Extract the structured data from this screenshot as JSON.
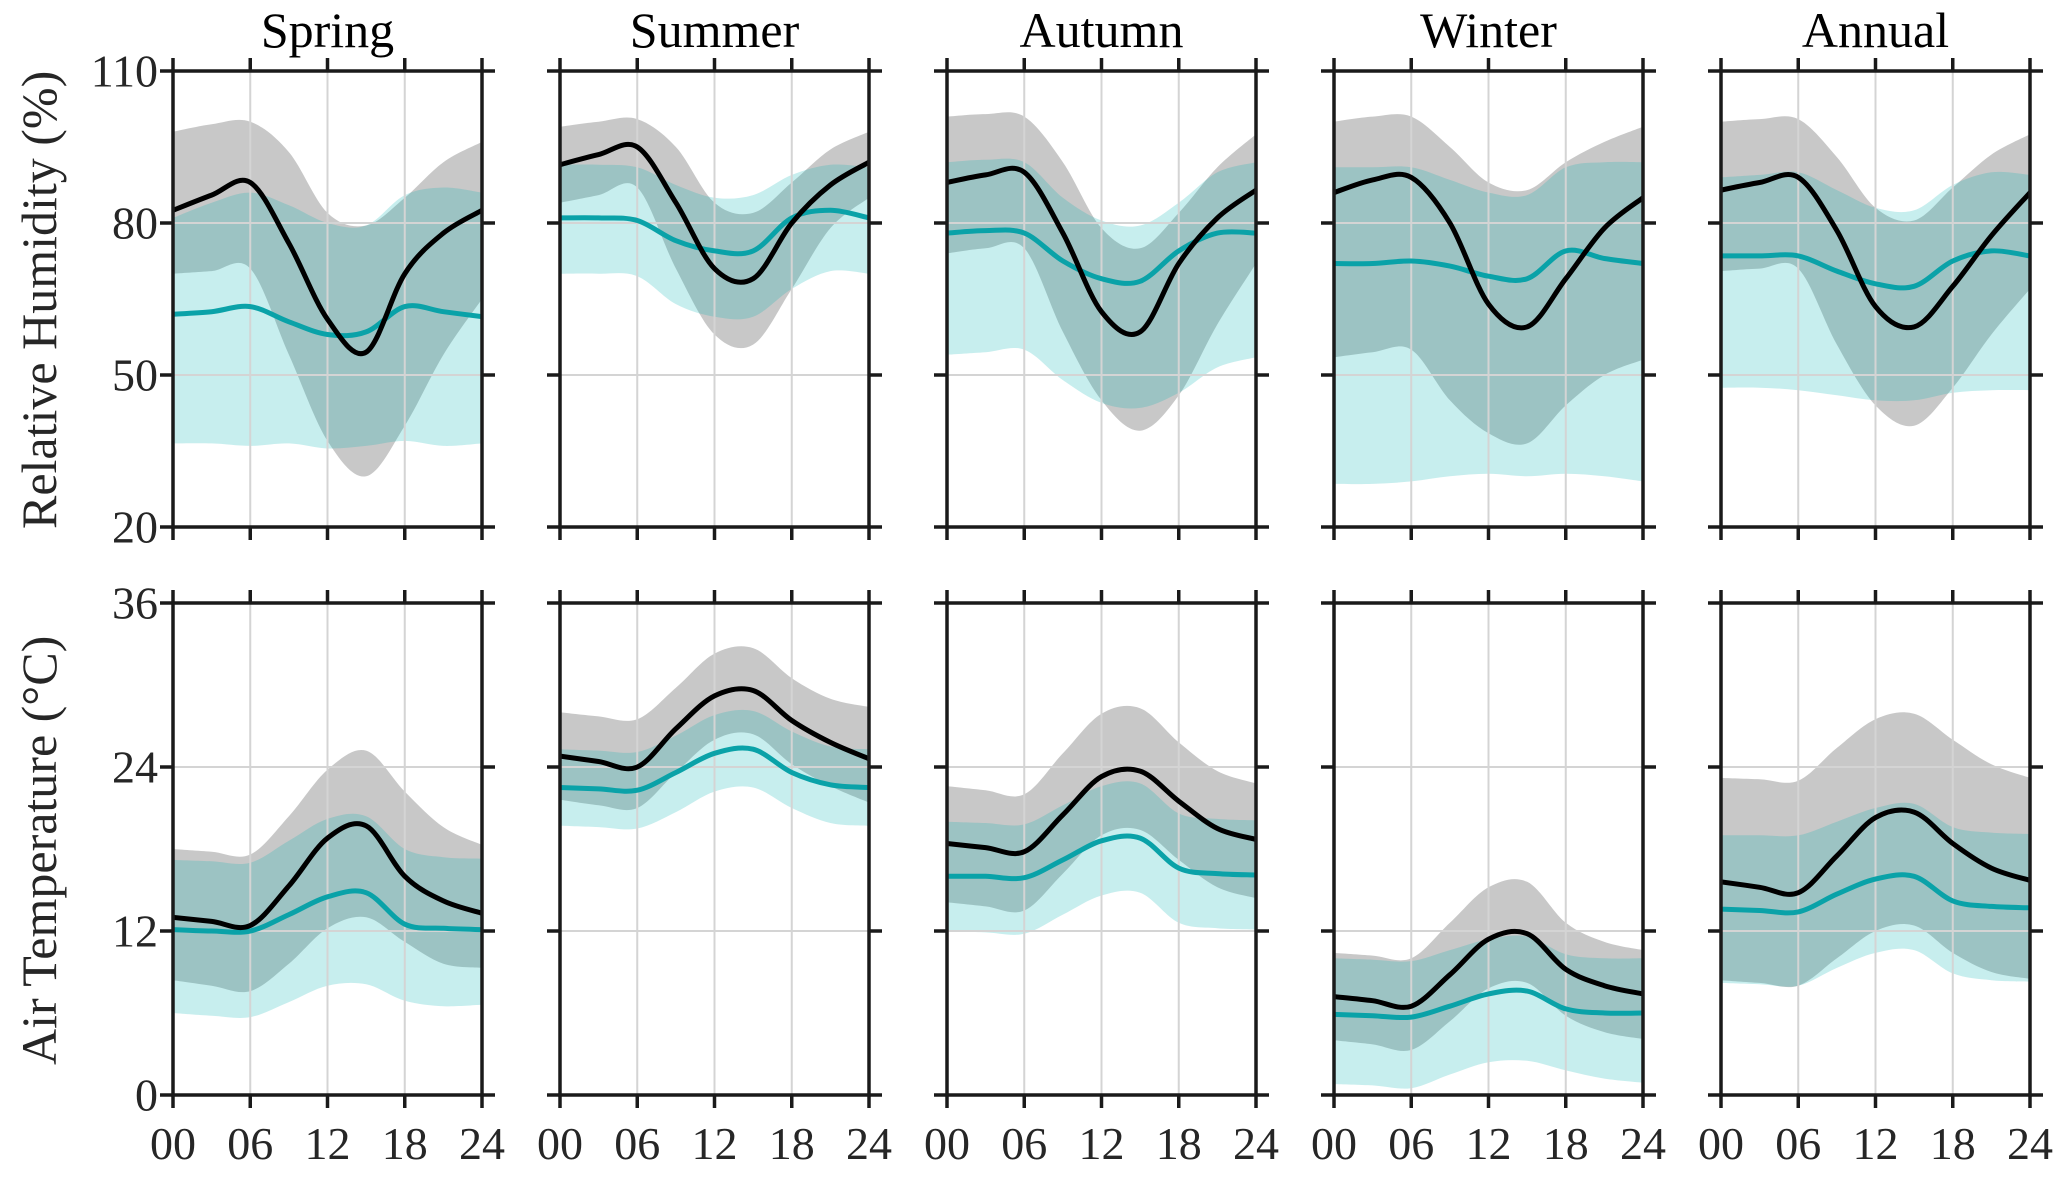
{
  "chart_data": {
    "type": "line",
    "figure_kind": "2x5 small-multiples, mean lines with shaded spread bands",
    "columns": [
      "Spring",
      "Summer",
      "Autumn",
      "Winter",
      "Annual"
    ],
    "x": {
      "hours": [
        0,
        3,
        6,
        9,
        12,
        15,
        18,
        21,
        24
      ],
      "tick_hours": [
        0,
        6,
        12,
        18,
        24
      ],
      "tick_labels": [
        "00",
        "06",
        "12",
        "18",
        "24"
      ],
      "grid_hours": [
        6,
        12,
        18
      ]
    },
    "colors": {
      "black_line": "#000000",
      "teal_line": "#0aa2a8",
      "gray_band": "#7d7d7d",
      "cyan_band": "#00b2b2",
      "gridline": "#d4d4d4",
      "axis": "#1a1a1a"
    },
    "legend_position": "none",
    "grid": "on",
    "rows": [
      {
        "ylabel": "Relative Humidity (%)",
        "ylim": [
          20,
          110
        ],
        "yticks": [
          110,
          80,
          50,
          20
        ],
        "gridlines_y": [
          80,
          50
        ],
        "panels": [
          {
            "column": "Spring",
            "black_mean": [
              82.5,
              85.5,
              88,
              76,
              61,
              54.5,
              70,
              78,
              82.5
            ],
            "gray_lo": [
              70,
              70.5,
              71,
              54,
              37,
              30,
              40,
              54,
              65
            ],
            "gray_hi": [
              98,
              99.5,
              100,
              94,
              82,
              79.5,
              85,
              92,
              96
            ],
            "teal_mean": [
              62,
              62.5,
              63.5,
              60.5,
              58,
              58.5,
              63.5,
              62.5,
              61.5
            ],
            "cyan_lo": [
              36.5,
              36.5,
              36,
              36.5,
              35.5,
              36,
              37,
              36,
              36.5
            ],
            "cyan_hi": [
              81,
              84,
              86,
              83.5,
              80,
              79.5,
              85.5,
              87,
              86
            ]
          },
          {
            "column": "Summer",
            "black_mean": [
              91.5,
              93.5,
              95,
              84,
              71,
              69,
              80,
              87.5,
              92
            ],
            "gray_lo": [
              84,
              85.5,
              87,
              71,
              58,
              56,
              67,
              79,
              85
            ],
            "gray_hi": [
              99,
              100,
              100.5,
              95,
              84,
              82,
              88,
              94.5,
              98
            ],
            "teal_mean": [
              81,
              81,
              80.5,
              76.5,
              74.5,
              74.5,
              81,
              82.5,
              81
            ],
            "cyan_lo": [
              70,
              70,
              69.5,
              64,
              61.5,
              61.5,
              67,
              70.5,
              70
            ],
            "cyan_hi": [
              91.5,
              91.5,
              91,
              87.5,
              85,
              85.5,
              89.5,
              91.5,
              91
            ]
          },
          {
            "column": "Autumn",
            "black_mean": [
              88,
              89.5,
              90,
              78,
              62.5,
              58.5,
              72,
              81,
              86.5
            ],
            "gray_lo": [
              74,
              75,
              75,
              58.5,
              45,
              39,
              46,
              60,
              72
            ],
            "gray_hi": [
              101,
              101.5,
              101,
              92,
              79,
              75,
              82,
              91,
              97.5
            ],
            "teal_mean": [
              78,
              78.5,
              78,
              72.5,
              69,
              68.5,
              74.5,
              78,
              78
            ],
            "cyan_lo": [
              54,
              54.5,
              55,
              49,
              44.5,
              43.5,
              46.5,
              51.5,
              53.5
            ],
            "cyan_hi": [
              92,
              92.5,
              92,
              85,
              80.5,
              79.5,
              84,
              90,
              92
            ]
          },
          {
            "column": "Winter",
            "black_mean": [
              86,
              88.5,
              89,
              80,
              64,
              59.5,
              69,
              79,
              85
            ],
            "gray_lo": [
              53.5,
              54.5,
              55,
              45,
              38.5,
              36.5,
              44,
              50,
              53
            ],
            "gray_hi": [
              100,
              101,
              101,
              95,
              88,
              86.5,
              92,
              96,
              99
            ],
            "teal_mean": [
              72,
              72,
              72.5,
              71.5,
              69.5,
              69,
              74.5,
              73,
              72
            ],
            "cyan_lo": [
              28.5,
              28.5,
              29,
              30,
              30.5,
              30,
              30.5,
              30,
              29
            ],
            "cyan_hi": [
              91,
              91,
              91,
              88.5,
              86,
              85.5,
              91,
              92,
              92
            ]
          },
          {
            "column": "Annual",
            "black_mean": [
              86.5,
              88,
              89,
              78.5,
              63.5,
              59.5,
              67.5,
              77.5,
              86
            ],
            "gray_lo": [
              70.5,
              71,
              71,
              56,
              44,
              40,
              47.5,
              58,
              67
            ],
            "gray_hi": [
              100,
              100.5,
              100.5,
              93,
              83,
              80.5,
              87,
              93.5,
              97.5
            ],
            "teal_mean": [
              73.5,
              73.5,
              73.5,
              70.5,
              68,
              67.5,
              72.5,
              74.5,
              73.5
            ],
            "cyan_lo": [
              47.5,
              47.5,
              47,
              46,
              45,
              45,
              46.5,
              47,
              47
            ],
            "cyan_hi": [
              89,
              89.5,
              90,
              86.5,
              83,
              82.5,
              87.5,
              90,
              89.5
            ]
          }
        ]
      },
      {
        "ylabel": "Air Temperature (°C)",
        "ylim": [
          0,
          36
        ],
        "yticks": [
          36,
          24,
          12,
          0
        ],
        "gridlines_y": [
          24,
          12
        ],
        "panels": [
          {
            "column": "Spring",
            "black_mean": [
              13.0,
              12.7,
              12.4,
              15.3,
              18.8,
              19.7,
              16.0,
              14.2,
              13.3
            ],
            "gray_lo": [
              8.4,
              8.0,
              7.6,
              9.6,
              12.2,
              13.0,
              11.2,
              9.6,
              9.3
            ],
            "gray_hi": [
              18.0,
              17.8,
              17.6,
              20.4,
              23.8,
              25.2,
              22.2,
              19.6,
              18.3
            ],
            "teal_mean": [
              12.1,
              12.0,
              12.0,
              13.2,
              14.5,
              14.8,
              12.5,
              12.2,
              12.1
            ],
            "cyan_lo": [
              6.0,
              5.8,
              5.7,
              6.8,
              8.0,
              8.1,
              6.9,
              6.5,
              6.6
            ],
            "cyan_hi": [
              17.2,
              17.1,
              17.0,
              18.6,
              20.2,
              20.4,
              18.0,
              17.4,
              17.3
            ]
          },
          {
            "column": "Summer",
            "black_mean": [
              24.8,
              24.4,
              24.0,
              26.8,
              29.2,
              29.6,
              27.4,
              25.8,
              24.6
            ],
            "gray_lo": [
              21.6,
              21.2,
              21.0,
              23.6,
              26.0,
              26.4,
              24.2,
              22.6,
              21.4
            ],
            "gray_hi": [
              28.0,
              27.7,
              27.5,
              29.8,
              32.3,
              32.7,
              30.5,
              29.0,
              28.4
            ],
            "teal_mean": [
              22.5,
              22.4,
              22.3,
              23.6,
              25.0,
              25.3,
              23.6,
              22.7,
              22.5
            ],
            "cyan_lo": [
              19.7,
              19.6,
              19.5,
              20.7,
              22.2,
              22.5,
              21.0,
              19.9,
              19.7
            ],
            "cyan_hi": [
              25.3,
              25.2,
              25.1,
              26.3,
              27.8,
              28.1,
              26.6,
              25.5,
              25.3
            ]
          },
          {
            "column": "Autumn",
            "black_mean": [
              18.4,
              18.1,
              17.8,
              20.5,
              23.3,
              23.7,
              21.5,
              19.5,
              18.7
            ],
            "gray_lo": [
              14.1,
              13.8,
              13.5,
              16.2,
              19.0,
              19.4,
              17.2,
              15.2,
              14.4
            ],
            "gray_hi": [
              22.6,
              22.3,
              22.0,
              25.0,
              27.9,
              28.3,
              25.8,
              23.7,
              22.8
            ],
            "teal_mean": [
              16.0,
              16.0,
              15.9,
              17.2,
              18.6,
              18.8,
              16.6,
              16.2,
              16.1
            ],
            "cyan_lo": [
              12.0,
              11.9,
              11.8,
              13.2,
              14.6,
              14.8,
              12.6,
              12.2,
              12.1
            ],
            "cyan_hi": [
              20.0,
              19.9,
              19.8,
              21.2,
              22.6,
              22.8,
              20.6,
              20.2,
              20.1
            ]
          },
          {
            "column": "Winter",
            "black_mean": [
              7.2,
              6.9,
              6.5,
              8.8,
              11.4,
              11.8,
              9.2,
              8.0,
              7.4
            ],
            "gray_lo": [
              4.0,
              3.7,
              3.3,
              5.4,
              7.8,
              8.2,
              5.8,
              4.6,
              4.1
            ],
            "gray_hi": [
              10.4,
              10.2,
              10.0,
              12.6,
              15.2,
              15.6,
              12.6,
              11.2,
              10.6
            ],
            "teal_mean": [
              5.9,
              5.8,
              5.7,
              6.5,
              7.4,
              7.6,
              6.3,
              6.0,
              6.0
            ],
            "cyan_lo": [
              0.8,
              0.7,
              0.5,
              1.5,
              2.4,
              2.5,
              1.8,
              1.2,
              0.9
            ],
            "cyan_hi": [
              10.0,
              9.9,
              9.8,
              10.6,
              11.4,
              11.6,
              10.3,
              10.0,
              10.0
            ]
          },
          {
            "column": "Annual",
            "black_mean": [
              15.6,
              15.2,
              14.8,
              17.5,
              20.3,
              20.7,
              18.4,
              16.6,
              15.7
            ],
            "gray_lo": [
              8.4,
              8.2,
              8.0,
              10.0,
              12.0,
              12.4,
              10.4,
              9.0,
              8.5
            ],
            "gray_hi": [
              23.2,
              23.1,
              23.0,
              25.4,
              27.5,
              27.9,
              26.0,
              24.2,
              23.2
            ],
            "teal_mean": [
              13.6,
              13.5,
              13.4,
              14.7,
              15.8,
              16.0,
              14.2,
              13.8,
              13.7
            ],
            "cyan_lo": [
              8.2,
              8.1,
              8.0,
              9.3,
              10.4,
              10.6,
              8.9,
              8.4,
              8.3
            ],
            "cyan_hi": [
              19.0,
              19.0,
              19.0,
              20.0,
              21.0,
              21.3,
              19.6,
              19.2,
              19.1
            ]
          }
        ]
      }
    ]
  }
}
